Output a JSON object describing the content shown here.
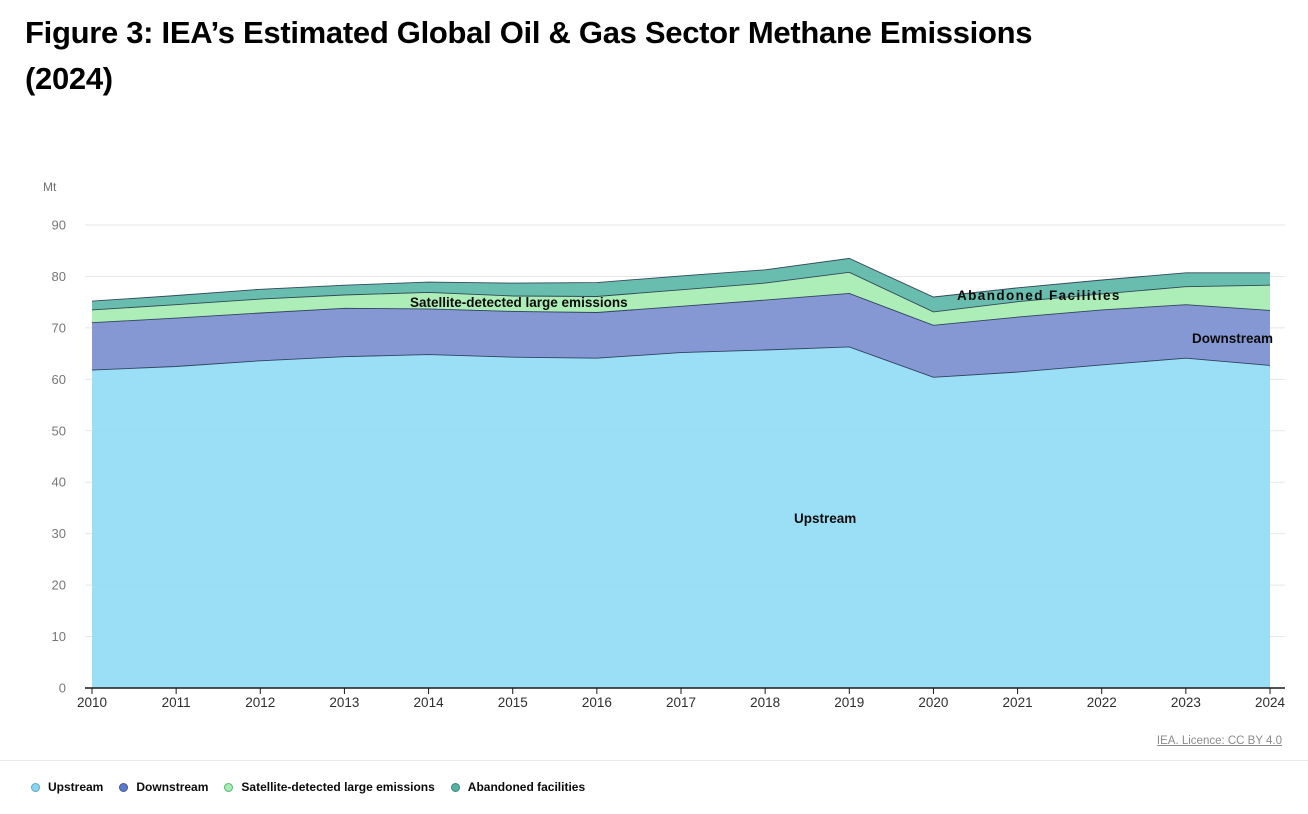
{
  "title": {
    "line1": "Figure 3: IEA’s Estimated Global Oil & Gas Sector Methane Emissions",
    "line2": "(2024)"
  },
  "source": "IEA. Licence: CC BY 4.0",
  "colors": {
    "upstream": "#92DCF5",
    "downstream": "#7B8FD0",
    "satellite": "#A6EDB2",
    "abandoned": "#5CB7A7",
    "band_outline": "#16243F",
    "grid": "#E7E7E7",
    "axis": "#1A1A1A",
    "y_tick_label": "#767676",
    "x_tick_label": "#2E2E2E"
  },
  "chart_data": {
    "type": "area",
    "stacked": true,
    "title": "Figure 3: IEA’s Estimated Global Oil & Gas Sector Methane Emissions (2024)",
    "unit_label": "Mt",
    "xlabel": "",
    "ylabel": "Mt",
    "ylim": [
      0,
      90
    ],
    "yticks": [
      0,
      10,
      20,
      30,
      40,
      50,
      60,
      70,
      80,
      90
    ],
    "grid": true,
    "legend_position": "bottom",
    "categories": [
      "2010",
      "2011",
      "2012",
      "2013",
      "2014",
      "2015",
      "2016",
      "2017",
      "2018",
      "2019",
      "2020",
      "2021",
      "2022",
      "2023",
      "2024"
    ],
    "series": [
      {
        "name": "Upstream",
        "color": "#92DCF5",
        "values": [
          61.8,
          62.5,
          63.6,
          64.4,
          64.8,
          64.3,
          64.1,
          65.2,
          65.7,
          66.3,
          60.4,
          61.4,
          62.8,
          64.1,
          62.7
        ]
      },
      {
        "name": "Downstream",
        "color": "#7B8FD0",
        "values": [
          9.2,
          9.4,
          9.3,
          9.4,
          8.9,
          8.9,
          8.9,
          9.0,
          9.7,
          10.4,
          10.1,
          10.7,
          10.7,
          10.4,
          10.7
        ]
      },
      {
        "name": "Satellite-detected large emissions",
        "color": "#A6EDB2",
        "values": [
          2.5,
          2.6,
          2.7,
          2.6,
          3.2,
          3.0,
          3.1,
          3.2,
          3.3,
          4.1,
          2.6,
          3.0,
          3.1,
          3.5,
          4.9
        ]
      },
      {
        "name": "Abandoned facilities",
        "color": "#5CB7A7",
        "values": [
          1.7,
          1.8,
          1.9,
          1.9,
          2.0,
          2.5,
          2.7,
          2.7,
          2.6,
          2.7,
          2.9,
          2.7,
          2.7,
          2.7,
          2.4
        ]
      }
    ],
    "annotations": [
      {
        "label": "Satellite-detected large emissions"
      },
      {
        "label": "Abandoned Facilities"
      },
      {
        "label": "Downstream"
      },
      {
        "label": "Upstream"
      }
    ]
  },
  "annotations": {
    "satellite": "Satellite-detected large emissions",
    "abandoned": "Abandoned Facilities",
    "downstream": "Downstream",
    "upstream": "Upstream"
  },
  "legend": {
    "items": [
      {
        "label": "Upstream",
        "color": "#87D7F4",
        "border": "#5BA5C9"
      },
      {
        "label": "Downstream",
        "color": "#5C79CC",
        "border": "#44549B"
      },
      {
        "label": "Satellite-detected large emissions",
        "color": "#A5EDB2",
        "border": "#5CB56E"
      },
      {
        "label": "Abandoned facilities",
        "color": "#55B2A2",
        "border": "#3B8578"
      }
    ]
  }
}
